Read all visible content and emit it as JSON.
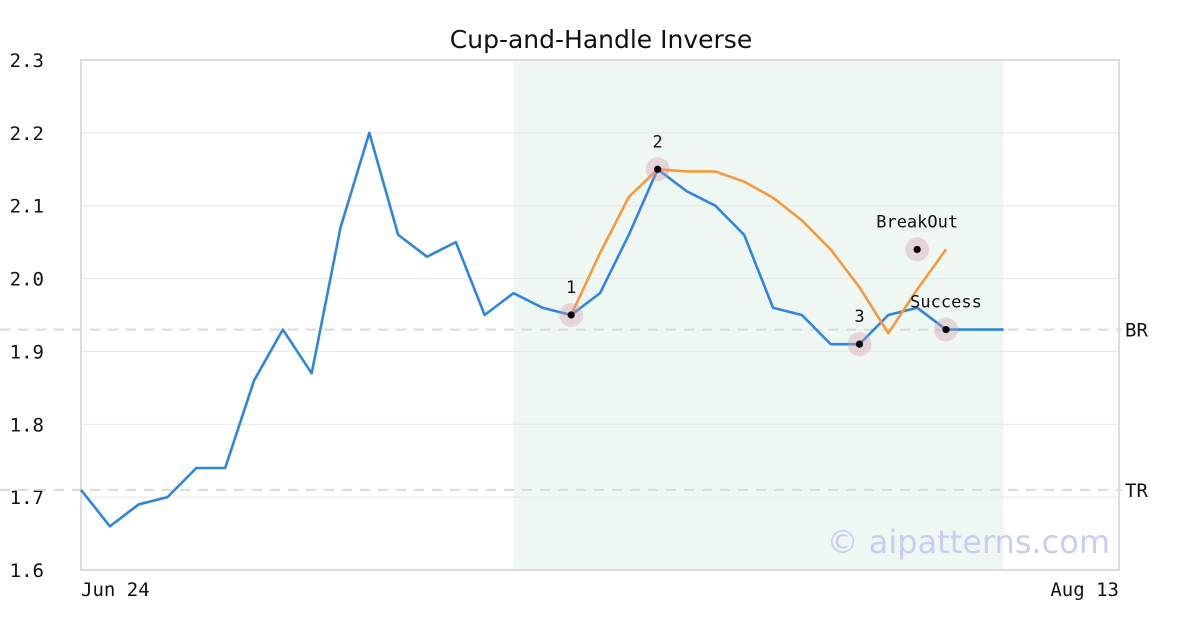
{
  "chart_data": {
    "type": "line",
    "title": "Cup-and-Handle Inverse",
    "xlabel": "",
    "ylabel": "",
    "ylim": [
      1.6,
      2.3
    ],
    "yticks": [
      "1.6",
      "1.7",
      "1.8",
      "1.9",
      "2.0",
      "2.1",
      "2.2",
      "2.3"
    ],
    "x_tick_labels": [
      {
        "index": 0,
        "label": "Jun 24"
      },
      {
        "index": 36,
        "label": "Aug 13"
      }
    ],
    "x_count": 37,
    "grid": true,
    "series": [
      {
        "color": "#2f86de",
        "values": [
          1.71,
          1.66,
          1.69,
          1.7,
          1.74,
          1.74,
          1.86,
          1.93,
          1.87,
          2.07,
          2.2,
          2.06,
          2.03,
          2.05,
          1.95,
          1.98,
          1.96,
          1.95,
          1.98,
          2.06,
          2.15,
          2.12,
          2.1,
          2.06,
          1.96,
          1.95,
          1.91,
          1.91,
          1.95,
          1.96,
          1.93,
          1.93,
          1.93
        ]
      },
      {
        "color": "#f7993d",
        "x_start": 17,
        "values": [
          1.95,
          2.035,
          2.112,
          2.15,
          2.147,
          2.147,
          2.133,
          2.111,
          2.08,
          2.04,
          1.988,
          1.925,
          1.985,
          2.04
        ]
      }
    ],
    "highlight_region": {
      "x_from": 15,
      "x_to": 32,
      "color": "#eef7f2"
    },
    "reference_lines": [
      {
        "label": "BR",
        "y": 1.93
      },
      {
        "label": "TR",
        "y": 1.71
      }
    ],
    "points": [
      {
        "label": "1",
        "x": 17,
        "y": 1.95
      },
      {
        "label": "2",
        "x": 20,
        "y": 2.15
      },
      {
        "label": "3",
        "x": 27,
        "y": 1.91
      },
      {
        "label": "BreakOut",
        "x": 29,
        "y": 2.04
      },
      {
        "label": "Success",
        "x": 30,
        "y": 1.93
      }
    ],
    "watermark": "© aipatterns.com"
  }
}
